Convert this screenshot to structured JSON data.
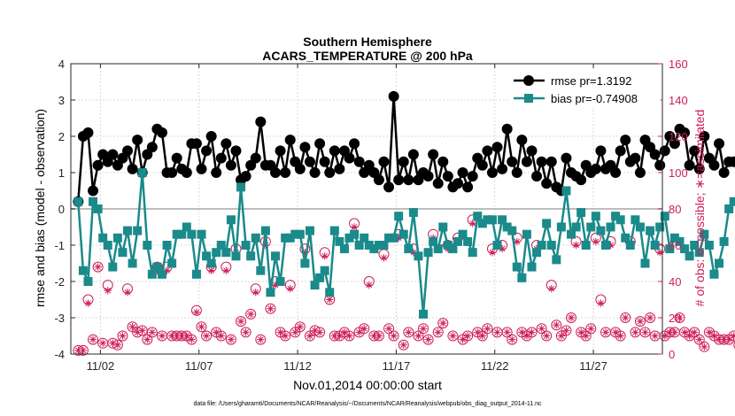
{
  "chart_data": {
    "type": "line",
    "title": "Southern Hemisphere",
    "subtitle": "ACARS_TEMPERATURE @ 200 hPa",
    "xlabel": "Nov.01,2014 00:00:00 start",
    "ylabel_left": "rmse and bias (model - observation)",
    "ylabel_right": "# of obs: o=possible; ∗=assimilated",
    "xlim": [
      0.5,
      30.5
    ],
    "ylim_left": [
      -4,
      4
    ],
    "ylim_right": [
      0,
      160
    ],
    "x_ticks": [
      2,
      7,
      12,
      17,
      22,
      27
    ],
    "x_tick_labels": [
      "11/02",
      "11/07",
      "11/12",
      "11/17",
      "11/22",
      "11/27"
    ],
    "y_ticks_left": [
      -4,
      -3,
      -2,
      -1,
      0,
      1,
      2,
      3,
      4
    ],
    "y_ticks_right": [
      0,
      20,
      40,
      60,
      80,
      100,
      120,
      140,
      160
    ],
    "zero_line": 0,
    "grid": true,
    "legend_position": "top-right",
    "x_start": 0.875,
    "x_step": 0.25,
    "series": [
      {
        "name": "rmse pr=1.3192",
        "axis": "left",
        "color": "#000000",
        "marker": "circle",
        "values": [
          0.2,
          2.0,
          2.1,
          0.5,
          1.2,
          1.5,
          1.3,
          1.5,
          1.2,
          1.4,
          1.6,
          1.1,
          1.9,
          1.0,
          1.5,
          1.7,
          2.2,
          2.1,
          1.0,
          1.0,
          1.4,
          1.1,
          1.0,
          1.8,
          1.8,
          1.1,
          1.6,
          2.0,
          1.0,
          1.4,
          1.8,
          1.2,
          1.6,
          0.8,
          0.9,
          1.2,
          1.4,
          2.4,
          1.2,
          1.2,
          1.0,
          1.6,
          1.0,
          1.9,
          1.3,
          1.1,
          1.7,
          1.3,
          1.0,
          1.8,
          1.3,
          1.0,
          1.6,
          1.1,
          1.6,
          1.4,
          1.8,
          1.3,
          1.0,
          1.2,
          1.0,
          0.8,
          1.3,
          0.6,
          3.1,
          0.8,
          1.3,
          0.8,
          1.5,
          0.8,
          1.0,
          0.9,
          1.5,
          0.7,
          1.3,
          0.9,
          0.6,
          0.7,
          1.0,
          0.6,
          0.9,
          1.4,
          1.2,
          1.6,
          1.0,
          1.7,
          1.1,
          2.2,
          1.3,
          1.0,
          1.9,
          1.3,
          1.6,
          0.9,
          1.3,
          0.7,
          1.3,
          0.6,
          0.5,
          1.4,
          1.0,
          0.9,
          0.8,
          1.2,
          1.0,
          1.1,
          1.6,
          1.1,
          1.2,
          1.0,
          1.6,
          1.9,
          1.3,
          1.4,
          1.0,
          1.9,
          1.7,
          1.5,
          1.2,
          1.6,
          2.0,
          1.8,
          2.2,
          2.1,
          1.2,
          1.6,
          1.1,
          2.0,
          1.4,
          1.2,
          1.8,
          1.0,
          1.3,
          1.3
        ]
      },
      {
        "name": "bias pr=-0.74908",
        "axis": "left",
        "color": "#1a8a8a",
        "marker": "square",
        "values": [
          0.2,
          -1.7,
          -2.0,
          0.2,
          0.0,
          -0.8,
          -1.0,
          -1.6,
          -0.8,
          -1.2,
          -0.6,
          -1.5,
          -0.6,
          1.0,
          -1.0,
          -1.8,
          -1.6,
          -1.8,
          -1.0,
          -1.5,
          -0.7,
          -0.7,
          -0.5,
          -0.7,
          -1.8,
          -0.7,
          -1.3,
          -1.5,
          -1.2,
          -1.0,
          -1.2,
          -0.3,
          -1.3,
          0.6,
          -1.0,
          -1.3,
          -0.8,
          -1.7,
          -0.6,
          -2.3,
          -1.3,
          -2.0,
          -0.8,
          -0.8,
          -0.7,
          -0.7,
          -1.5,
          -0.6,
          -2.1,
          -1.9,
          -1.7,
          -2.3,
          -0.6,
          -0.9,
          -1.1,
          -0.8,
          -0.7,
          -1.0,
          -0.8,
          -1.0,
          -1.1,
          -1.0,
          -1.0,
          -0.8,
          -0.8,
          -0.2,
          -0.7,
          -1.1,
          -0.1,
          -1.3,
          -2.9,
          -1.2,
          -0.9,
          -1.1,
          -0.5,
          -1.0,
          -1.1,
          -0.9,
          -0.7,
          -0.9,
          -1.2,
          -0.2,
          -0.4,
          -0.3,
          -0.3,
          -1.0,
          -0.3,
          -0.5,
          -0.6,
          -1.6,
          -1.9,
          -0.7,
          -1.6,
          -1.2,
          -1.0,
          -0.4,
          -1.0,
          -1.4,
          -0.5,
          0.5,
          -0.7,
          -0.5,
          -0.1,
          -1.0,
          -0.5,
          -0.2,
          -0.6,
          -1.0,
          -0.5,
          -0.2,
          -0.3,
          -0.8,
          -1.0,
          -0.3,
          -0.5,
          -1.5,
          -0.6,
          -1.0,
          -0.5,
          -0.2,
          -1.1,
          -0.8,
          -0.9,
          -1.1,
          -1.3,
          -1.0,
          -1.2,
          -0.7,
          -1.0,
          -1.8,
          -1.5,
          -0.9,
          0.0,
          0.2
        ]
      },
      {
        "name": "possible",
        "axis": "right",
        "color": "#cc1f5a",
        "marker": "circle-open",
        "values": [
          2,
          2,
          30,
          8,
          48,
          6,
          38,
          6,
          5,
          10,
          36,
          15,
          12,
          13,
          8,
          12,
          48,
          10,
          48,
          10,
          10,
          10,
          10,
          8,
          24,
          15,
          10,
          48,
          12,
          10,
          48,
          8,
          58,
          18,
          12,
          22,
          36,
          8,
          62,
          25,
          40,
          12,
          10,
          38,
          12,
          15,
          58,
          10,
          13,
          12,
          56,
          30,
          10,
          10,
          12,
          10,
          72,
          12,
          14,
          40,
          10,
          10,
          55,
          14,
          10,
          66,
          5,
          12,
          58,
          10,
          14,
          8,
          66,
          12,
          17,
          60,
          10,
          64,
          8,
          10,
          74,
          12,
          10,
          14,
          58,
          12,
          60,
          12,
          8,
          64,
          12,
          10,
          12,
          60,
          14,
          10,
          38,
          16,
          10,
          13,
          20,
          62,
          12,
          10,
          14,
          64,
          30,
          12,
          62,
          12,
          10,
          20,
          62,
          12,
          18,
          12,
          20,
          10,
          58,
          10,
          12,
          12,
          20,
          12,
          10,
          12,
          8,
          4,
          12,
          10,
          8,
          8,
          8,
          10,
          5
        ]
      },
      {
        "name": "assimilated",
        "axis": "right",
        "color": "#cc1f5a",
        "marker": "asterisk",
        "values": [
          2,
          2,
          28,
          8,
          48,
          6,
          35,
          6,
          5,
          10,
          34,
          15,
          12,
          13,
          8,
          12,
          46,
          10,
          46,
          10,
          10,
          10,
          10,
          8,
          23,
          15,
          10,
          46,
          12,
          10,
          46,
          8,
          56,
          18,
          12,
          22,
          34,
          8,
          60,
          25,
          38,
          12,
          10,
          36,
          12,
          15,
          56,
          10,
          13,
          12,
          54,
          30,
          10,
          10,
          12,
          10,
          70,
          12,
          14,
          38,
          10,
          10,
          53,
          14,
          10,
          64,
          5,
          12,
          56,
          10,
          14,
          8,
          64,
          12,
          17,
          58,
          10,
          62,
          8,
          10,
          72,
          12,
          10,
          14,
          56,
          12,
          58,
          12,
          8,
          62,
          12,
          10,
          12,
          58,
          14,
          10,
          36,
          16,
          10,
          13,
          20,
          60,
          12,
          10,
          14,
          62,
          28,
          12,
          60,
          12,
          10,
          20,
          60,
          12,
          18,
          12,
          20,
          10,
          56,
          10,
          12,
          12,
          20,
          12,
          10,
          12,
          8,
          4,
          12,
          10,
          8,
          8,
          8,
          10,
          5
        ]
      }
    ],
    "footnote": "data file: /Users/gharamti/Documents/NCAR/Reanalysis/~/Documents/NCAR/Reanalysis/webpub/obs_diag_output_2014-11.nc"
  }
}
